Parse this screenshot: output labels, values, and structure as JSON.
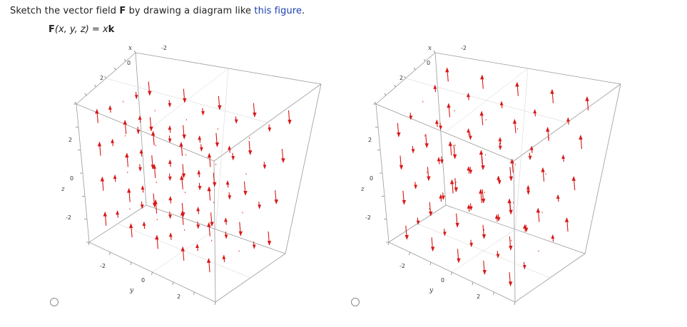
{
  "question": {
    "before": "Sketch the vector field ",
    "field_symbol": "F",
    "middle": " by drawing a diagram like ",
    "link_text": "this figure",
    "after": "."
  },
  "formula": {
    "lhs": "F",
    "args": "(x, y, z)",
    "equals": " = ",
    "coef": "x",
    "unit": "k"
  },
  "plots": [
    {
      "axis_x": "x",
      "axis_y": "y",
      "axis_z": "z",
      "x_ticks": [
        "2",
        "0",
        "-2"
      ],
      "y_ticks": [
        "-2",
        "0",
        "2"
      ],
      "z_ticks": [
        "2",
        "0",
        "-2"
      ],
      "arrow_color": "#d81818",
      "orientation": "up-back"
    },
    {
      "axis_x": "x",
      "axis_y": "y",
      "axis_z": "z",
      "x_ticks": [
        "2",
        "0",
        "-2"
      ],
      "y_ticks": [
        "-2",
        "0",
        "2"
      ],
      "z_ticks": [
        "2",
        "0",
        "-2"
      ],
      "arrow_color": "#d81818",
      "orientation": "down-back"
    }
  ],
  "choices": [
    {
      "selected": false
    },
    {
      "selected": false
    }
  ]
}
